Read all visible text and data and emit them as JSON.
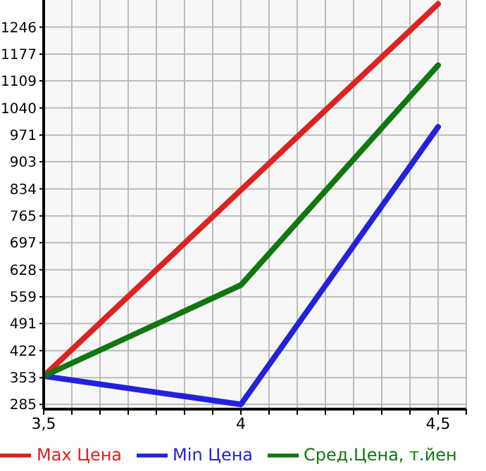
{
  "chart_data": {
    "type": "line",
    "x": [
      3.5,
      4,
      4.5
    ],
    "series": [
      {
        "name": "Max Цена",
        "color": "#dd2222",
        "values": [
          357,
          831,
          1305
        ]
      },
      {
        "name": "Min Цена",
        "color": "#2222dd",
        "values": [
          357,
          285,
          992
        ]
      },
      {
        "name": "Сред.Цена, т.йен",
        "color": "#117711",
        "values": [
          357,
          589,
          1149
        ]
      }
    ],
    "xlim": [
      3.5,
      4.5714
    ],
    "xticks": [
      {
        "value": 3.5,
        "label": "3,5"
      },
      {
        "value": 3.5714,
        "label": null
      },
      {
        "value": 3.6429,
        "label": null
      },
      {
        "value": 3.7143,
        "label": null
      },
      {
        "value": 3.7857,
        "label": null
      },
      {
        "value": 3.8571,
        "label": null
      },
      {
        "value": 3.9286,
        "label": null
      },
      {
        "value": 4,
        "label": "4"
      },
      {
        "value": 4.0714,
        "label": null
      },
      {
        "value": 4.1429,
        "label": null
      },
      {
        "value": 4.2143,
        "label": null
      },
      {
        "value": 4.2857,
        "label": null
      },
      {
        "value": 4.3571,
        "label": null
      },
      {
        "value": 4.4286,
        "label": null
      },
      {
        "value": 4.5,
        "label": "4,5"
      },
      {
        "value": 4.5714,
        "label": null
      }
    ],
    "ylim": [
      273,
      1315
    ],
    "yticks": [
      285,
      353,
      422,
      491,
      559,
      628,
      697,
      765,
      834,
      903,
      971,
      1040,
      1109,
      1177,
      1246
    ],
    "grid": true,
    "legend": "bottom",
    "marker": "none",
    "line_style": "solid"
  }
}
